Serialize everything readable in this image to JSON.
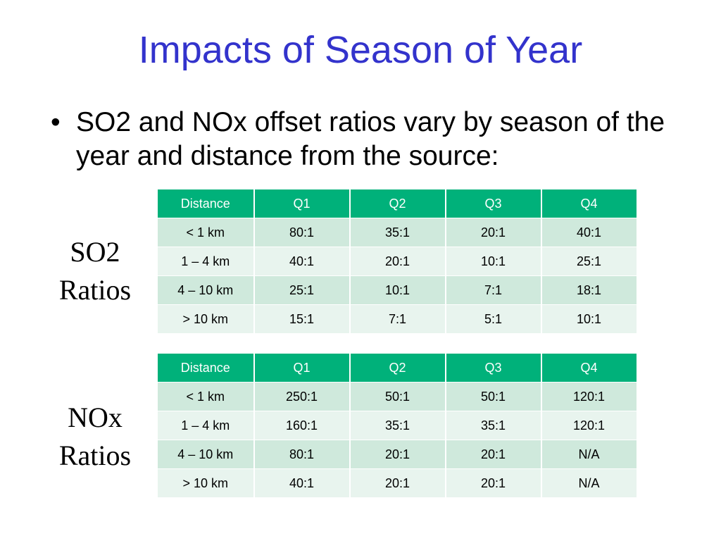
{
  "slide": {
    "title": "Impacts of Season of Year",
    "bullet": "SO2 and NOx offset ratios vary by season of the year and distance from the source:",
    "bullet_marker": "•"
  },
  "so2": {
    "label_line1": "SO2",
    "label_line2": "Ratios",
    "headers": [
      "Distance",
      "Q1",
      "Q2",
      "Q3",
      "Q4"
    ],
    "rows": [
      [
        "< 1 km",
        "80:1",
        "35:1",
        "20:1",
        "40:1"
      ],
      [
        "1 – 4 km",
        "40:1",
        "20:1",
        "10:1",
        "25:1"
      ],
      [
        "4 – 10 km",
        "25:1",
        "10:1",
        "7:1",
        "18:1"
      ],
      [
        "> 10 km",
        "15:1",
        "7:1",
        "5:1",
        "10:1"
      ]
    ]
  },
  "nox": {
    "label_line1": "NOx",
    "label_line2": "Ratios",
    "headers": [
      "Distance",
      "Q1",
      "Q2",
      "Q3",
      "Q4"
    ],
    "rows": [
      [
        "< 1 km",
        "250:1",
        "50:1",
        "50:1",
        "120:1"
      ],
      [
        "1 – 4 km",
        "160:1",
        "35:1",
        "35:1",
        "120:1"
      ],
      [
        "4 – 10 km",
        "80:1",
        "20:1",
        "20:1",
        "N/A"
      ],
      [
        "> 10 km",
        "40:1",
        "20:1",
        "20:1",
        "N/A"
      ]
    ]
  },
  "colors": {
    "title": "#3333cc",
    "header_bg": "#00b17a",
    "row_dark": "#cfe9dc",
    "row_light": "#e8f4ee"
  }
}
